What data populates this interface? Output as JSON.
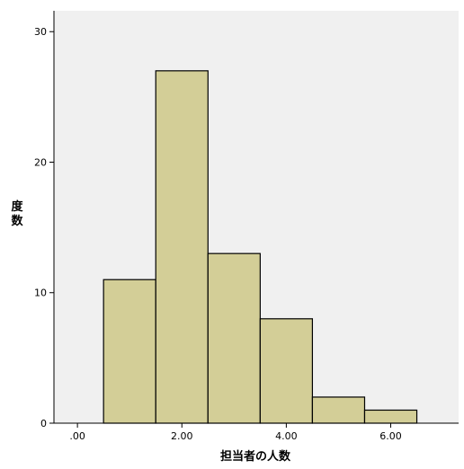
{
  "chart_data": {
    "type": "bar",
    "title": "",
    "xlabel": "担当者の人数",
    "ylabel": "度数",
    "bin_width": 1,
    "bins": [
      {
        "center": 1,
        "count": 11
      },
      {
        "center": 2,
        "count": 27
      },
      {
        "center": 3,
        "count": 13
      },
      {
        "center": 4,
        "count": 8
      },
      {
        "center": 5,
        "count": 2
      },
      {
        "center": 6,
        "count": 1
      }
    ],
    "xlim": [
      -0.45,
      7.3
    ],
    "ylim": [
      0,
      31.6
    ],
    "x_ticks": [
      {
        "value": 0,
        "label": ".00"
      },
      {
        "value": 2,
        "label": "2.00"
      },
      {
        "value": 4,
        "label": "4.00"
      },
      {
        "value": 6,
        "label": "6.00"
      }
    ],
    "y_ticks": [
      {
        "value": 0,
        "label": "0"
      },
      {
        "value": 10,
        "label": "10"
      },
      {
        "value": 20,
        "label": "20"
      },
      {
        "value": 30,
        "label": "30"
      }
    ],
    "grid": false,
    "colors": {
      "plot_background": "#f0f0f0",
      "bar_fill": "#d3ce97",
      "bar_stroke": "#000000",
      "axis": "#000000"
    }
  }
}
